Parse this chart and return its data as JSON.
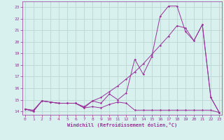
{
  "background_color": "#d8f0ee",
  "grid_color": "#b8d8d0",
  "line_color": "#993399",
  "xlim": [
    -0.3,
    23.3
  ],
  "ylim": [
    13.7,
    23.5
  ],
  "xticks": [
    0,
    1,
    2,
    3,
    4,
    5,
    6,
    7,
    8,
    9,
    10,
    11,
    12,
    13,
    14,
    15,
    16,
    17,
    18,
    19,
    20,
    21,
    22,
    23
  ],
  "yticks": [
    14,
    15,
    16,
    17,
    18,
    19,
    20,
    21,
    22,
    23
  ],
  "xlabel": "Windchill (Refroidissement éolien,°C)",
  "line1_x": [
    0,
    1,
    2,
    3,
    4,
    5,
    6,
    7,
    8,
    9,
    10,
    11,
    12,
    13,
    14,
    15,
    16,
    17,
    18,
    19,
    20,
    21,
    22,
    23
  ],
  "line1_y": [
    14.2,
    14.0,
    14.9,
    14.8,
    14.7,
    14.7,
    14.7,
    14.3,
    14.4,
    14.3,
    14.6,
    14.8,
    14.7,
    14.1,
    14.1,
    14.1,
    14.1,
    14.1,
    14.1,
    14.1,
    14.1,
    14.1,
    14.1,
    13.9
  ],
  "line2_x": [
    0,
    1,
    2,
    3,
    4,
    5,
    6,
    7,
    8,
    9,
    10,
    11,
    12,
    13,
    14,
    15,
    16,
    17,
    18,
    19,
    20,
    21,
    22,
    23
  ],
  "line2_y": [
    14.2,
    14.0,
    14.9,
    14.8,
    14.7,
    14.7,
    14.7,
    14.3,
    14.9,
    14.7,
    15.5,
    15.0,
    15.6,
    18.5,
    17.2,
    18.7,
    22.2,
    23.1,
    23.1,
    20.9,
    20.1,
    21.5,
    15.2,
    13.9
  ],
  "line3_x": [
    0,
    1,
    2,
    3,
    4,
    5,
    6,
    7,
    8,
    9,
    10,
    11,
    12,
    13,
    14,
    15,
    16,
    17,
    18,
    19,
    20,
    21,
    22,
    23
  ],
  "line3_y": [
    14.2,
    14.1,
    14.9,
    14.8,
    14.7,
    14.7,
    14.7,
    14.4,
    14.9,
    15.2,
    15.7,
    16.2,
    16.8,
    17.4,
    18.1,
    18.9,
    19.7,
    20.5,
    21.4,
    21.2,
    20.1,
    21.5,
    15.2,
    13.9
  ]
}
